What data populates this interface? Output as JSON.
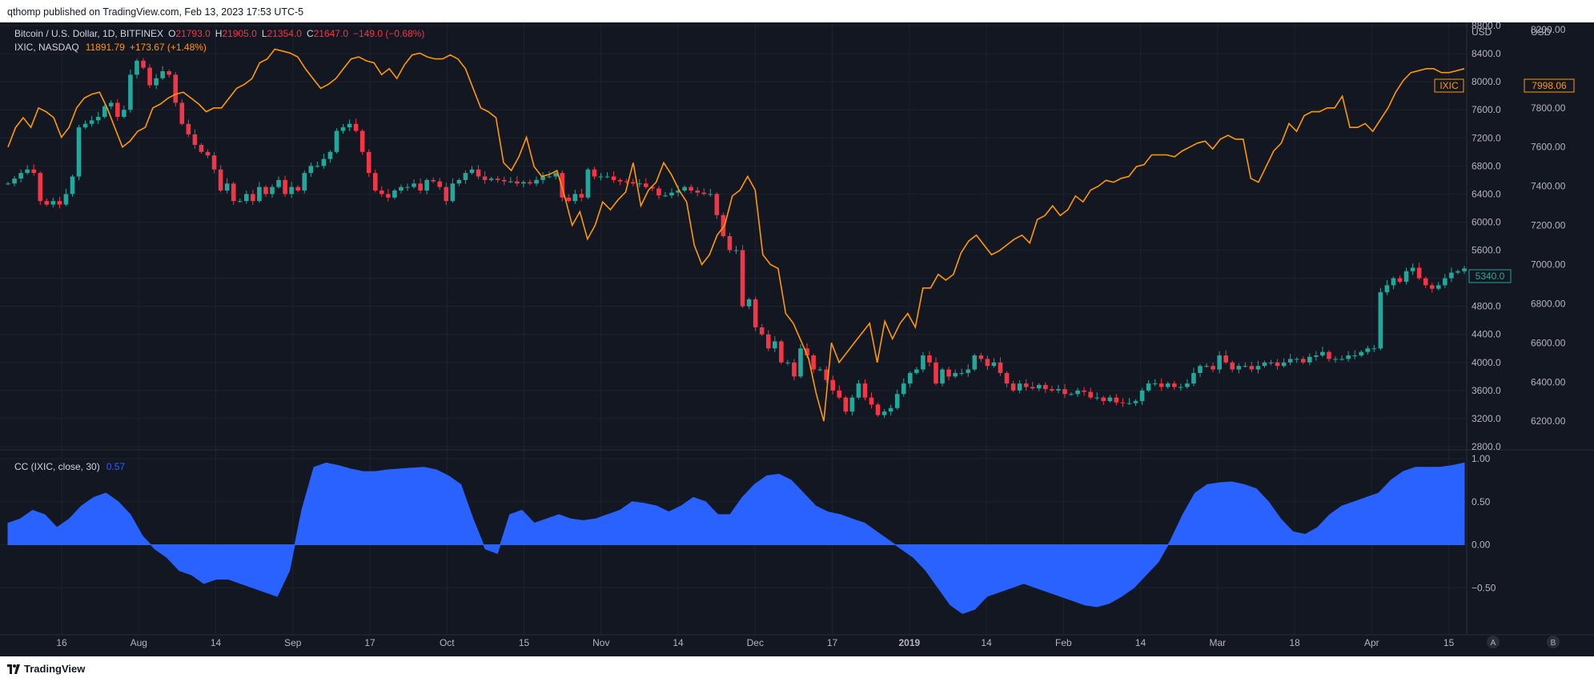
{
  "header": {
    "text": "qthomp published on TradingView.com, Feb 13, 2023 17:53 UTC-5"
  },
  "footer": {
    "brand": "TradingView"
  },
  "colors": {
    "bg": "#131722",
    "up": "#26a69a",
    "down": "#f23645",
    "ixic": "#ff9800",
    "cc": "#2962ff",
    "text": "#b2b5be"
  },
  "legend": {
    "main": {
      "symbol": "Bitcoin / U.S. Dollar, 1D, BITFINEX",
      "o_label": "O",
      "o": "21793.0",
      "h_label": "H",
      "h": "21905.0",
      "l_label": "L",
      "l": "21354.0",
      "c_label": "C",
      "c": "21647.0",
      "chg": "−149.0 (−0.68%)"
    },
    "ixic": {
      "symbol": "IXIC, NASDAQ",
      "value": "11891.79",
      "chg": "+173.67 (+1.48%)"
    },
    "cc": {
      "name": "CC (IXIC, close, 30)",
      "value": "0.57"
    }
  },
  "axes": {
    "currency_left": "USD",
    "currency_right": "USD",
    "left_ticks": [
      "8800.0",
      "8400.0",
      "8000.0",
      "7600.0",
      "7200.0",
      "6800.0",
      "6400.0",
      "6000.0",
      "5600.0",
      "5200.0",
      "4800.0",
      "4400.0",
      "4000.0",
      "3600.0",
      "3200.0",
      "2800.0"
    ],
    "right_ticks": [
      "8200.00",
      "7800.00",
      "7600.00",
      "7400.00",
      "7200.00",
      "7000.00",
      "6800.00",
      "6600.00",
      "6400.00",
      "6200.00"
    ],
    "cc_ticks": [
      "1.00",
      "0.50",
      "0.00",
      "−0.50"
    ],
    "x_ticks": [
      "16",
      "Aug",
      "14",
      "Sep",
      "17",
      "Oct",
      "15",
      "Nov",
      "14",
      "Dec",
      "17",
      "2019",
      "14",
      "Feb",
      "14",
      "Mar",
      "18",
      "Apr",
      "15"
    ],
    "scale_buttons": [
      "A",
      "B"
    ]
  },
  "badges": {
    "ixic_label": "IXIC",
    "ixic_value": "7998.06",
    "btc_value": "5340.0"
  },
  "chart_data": {
    "type": "line",
    "title": "Bitcoin / U.S. Dollar, 1D, BITFINEX",
    "btc": {
      "name": "Bitcoin / U.S. Dollar",
      "style": "candlestick",
      "ylim": [
        2800,
        8800
      ],
      "close": [
        6550,
        6620,
        6700,
        6750,
        6700,
        6300,
        6250,
        6300,
        6250,
        6400,
        6650,
        7350,
        7400,
        7450,
        7500,
        7650,
        7700,
        7500,
        7600,
        8100,
        8300,
        8200,
        7950,
        8050,
        8150,
        8100,
        7700,
        7400,
        7250,
        7100,
        7000,
        6950,
        6750,
        6450,
        6550,
        6300,
        6300,
        6400,
        6300,
        6500,
        6400,
        6500,
        6600,
        6400,
        6500,
        6450,
        6700,
        6800,
        6800,
        6900,
        7000,
        7300,
        7350,
        7400,
        7300,
        7000,
        6700,
        6450,
        6400,
        6350,
        6450,
        6500,
        6500,
        6550,
        6450,
        6600,
        6580,
        6500,
        6300,
        6550,
        6600,
        6700,
        6750,
        6650,
        6600,
        6620,
        6600,
        6580,
        6580,
        6550,
        6570,
        6550,
        6600,
        6650,
        6650,
        6700,
        6350,
        6300,
        6400,
        6350,
        6750,
        6650,
        6650,
        6650,
        6600,
        6580,
        6570,
        6550,
        6550,
        6500,
        6480,
        6380,
        6380,
        6420,
        6450,
        6500,
        6450,
        6420,
        6400,
        6400,
        6100,
        5800,
        5600,
        5600,
        4800,
        4900,
        4500,
        4400,
        4200,
        4300,
        4000,
        4000,
        3800,
        4200,
        4100,
        3900,
        3900,
        3750,
        3600,
        3500,
        3300,
        3500,
        3700,
        3500,
        3400,
        3250,
        3300,
        3350,
        3550,
        3700,
        3850,
        3900,
        4100,
        4000,
        3700,
        3900,
        3800,
        3850,
        3850,
        3900,
        4100,
        4050,
        3950,
        4000,
        3850,
        3700,
        3600,
        3700,
        3650,
        3630,
        3680,
        3620,
        3600,
        3620,
        3550,
        3550,
        3600,
        3580,
        3500,
        3500,
        3450,
        3500,
        3430,
        3420,
        3420,
        3450,
        3600,
        3700,
        3700,
        3650,
        3700,
        3650,
        3650,
        3700,
        3850,
        3950,
        3950,
        3900,
        4100,
        4000,
        3900,
        3950,
        3950,
        3900,
        3950,
        4000,
        4000,
        3950,
        4000,
        4050,
        4050,
        4000,
        4080,
        4100,
        4150,
        4050,
        4050,
        4050,
        4100,
        4100,
        4150,
        4200,
        4200,
        5000,
        5100,
        5200,
        5150,
        5300,
        5350,
        5200,
        5100,
        5050,
        5100,
        5200,
        5280,
        5300,
        5340
      ]
    },
    "ixic": {
      "name": "IXIC",
      "style": "line",
      "ylim": [
        6070,
        8220
      ],
      "values": [
        7600,
        7700,
        7750,
        7700,
        7800,
        7780,
        7750,
        7650,
        7700,
        7800,
        7850,
        7870,
        7880,
        7800,
        7700,
        7600,
        7630,
        7680,
        7700,
        7800,
        7820,
        7850,
        7870,
        7880,
        7850,
        7820,
        7780,
        7800,
        7800,
        7850,
        7900,
        7920,
        7950,
        8030,
        8050,
        8100,
        8090,
        8080,
        8060,
        8000,
        7950,
        7900,
        7920,
        7950,
        8000,
        8050,
        8060,
        8040,
        8030,
        7970,
        8000,
        7950,
        8020,
        8070,
        8080,
        8060,
        8050,
        8050,
        8070,
        8050,
        8000,
        7900,
        7800,
        7780,
        7750,
        7520,
        7480,
        7550,
        7650,
        7500,
        7450,
        7460,
        7480,
        7350,
        7200,
        7270,
        7130,
        7200,
        7320,
        7280,
        7330,
        7370,
        7520,
        7300,
        7380,
        7420,
        7520,
        7460,
        7380,
        7320,
        7100,
        7000,
        7050,
        7150,
        7200,
        7350,
        7380,
        7450,
        7380,
        7050,
        7000,
        6980,
        6750,
        6700,
        6610,
        6520,
        6340,
        6200,
        6600,
        6500,
        6550,
        6600,
        6650,
        6700,
        6500,
        6710,
        6620,
        6700,
        6750,
        6680,
        6880,
        6880,
        6950,
        6920,
        6950,
        7060,
        7120,
        7150,
        7100,
        7050,
        7070,
        7100,
        7130,
        7150,
        7110,
        7230,
        7250,
        7300,
        7250,
        7280,
        7350,
        7320,
        7380,
        7400,
        7430,
        7420,
        7440,
        7450,
        7500,
        7510,
        7560,
        7560,
        7560,
        7550,
        7580,
        7600,
        7620,
        7630,
        7590,
        7640,
        7660,
        7640,
        7640,
        7440,
        7420,
        7500,
        7580,
        7620,
        7720,
        7680,
        7760,
        7780,
        7780,
        7800,
        7800,
        7860,
        7700,
        7700,
        7720,
        7680,
        7740,
        7800,
        7880,
        7940,
        7980,
        7990,
        8000,
        8000,
        7980,
        7980,
        7990,
        8000
      ]
    },
    "cc": {
      "name": "CC (IXIC, close, 30)",
      "style": "area",
      "ylim": [
        -1.0,
        1.0
      ],
      "values": [
        0.25,
        0.3,
        0.4,
        0.35,
        0.2,
        0.3,
        0.45,
        0.55,
        0.6,
        0.5,
        0.35,
        0.1,
        -0.05,
        -0.15,
        -0.3,
        -0.35,
        -0.45,
        -0.4,
        -0.4,
        -0.45,
        -0.5,
        -0.55,
        -0.6,
        -0.3,
        0.4,
        0.9,
        0.95,
        0.92,
        0.88,
        0.85,
        0.85,
        0.87,
        0.88,
        0.89,
        0.9,
        0.87,
        0.8,
        0.7,
        0.3,
        -0.05,
        -0.1,
        0.35,
        0.4,
        0.25,
        0.3,
        0.35,
        0.3,
        0.28,
        0.3,
        0.35,
        0.4,
        0.5,
        0.48,
        0.45,
        0.38,
        0.45,
        0.55,
        0.5,
        0.35,
        0.35,
        0.55,
        0.7,
        0.8,
        0.82,
        0.75,
        0.6,
        0.45,
        0.38,
        0.35,
        0.3,
        0.25,
        0.15,
        0.05,
        -0.05,
        -0.15,
        -0.3,
        -0.5,
        -0.7,
        -0.8,
        -0.75,
        -0.6,
        -0.55,
        -0.5,
        -0.45,
        -0.5,
        -0.55,
        -0.6,
        -0.65,
        -0.7,
        -0.72,
        -0.68,
        -0.6,
        -0.5,
        -0.35,
        -0.2,
        0.05,
        0.35,
        0.6,
        0.7,
        0.72,
        0.73,
        0.7,
        0.65,
        0.5,
        0.3,
        0.15,
        0.12,
        0.2,
        0.35,
        0.45,
        0.5,
        0.55,
        0.6,
        0.75,
        0.85,
        0.9,
        0.9,
        0.9,
        0.92,
        0.95
      ]
    }
  }
}
